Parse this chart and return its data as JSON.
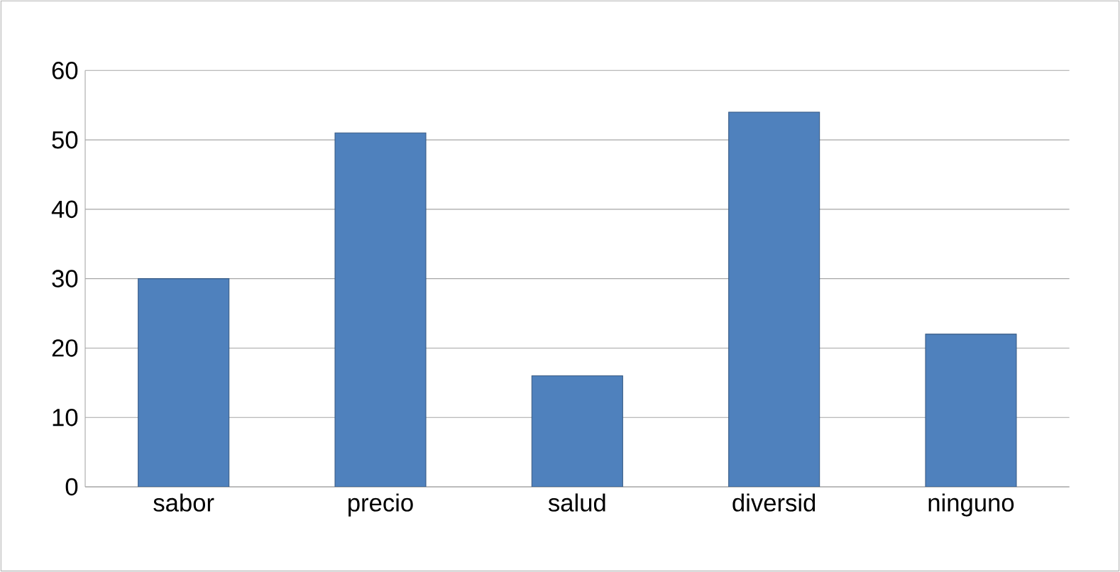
{
  "chart_data": {
    "type": "bar",
    "categories": [
      "sabor",
      "precio",
      "salud",
      "diversid",
      "ninguno"
    ],
    "values": [
      30,
      51,
      16,
      54,
      22
    ],
    "color": "#4f81bd",
    "ylim": [
      0,
      60
    ],
    "yticks": [
      0,
      10,
      20,
      30,
      40,
      50,
      60
    ],
    "grid": "y"
  }
}
